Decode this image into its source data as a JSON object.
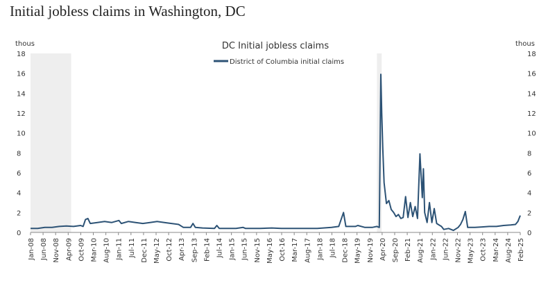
{
  "page_title": "Initial jobless claims in Washington, DC",
  "chart_data": {
    "type": "line",
    "title": "DC Initial jobless claims",
    "y_unit_left": "thous",
    "y_unit_right": "thous",
    "ylim": [
      0,
      18
    ],
    "y_ticks": [
      0,
      2,
      4,
      6,
      8,
      10,
      12,
      14,
      16,
      18
    ],
    "x_range": [
      "Jan-08",
      "Feb-25"
    ],
    "x_tick_labels": [
      "Jan-08",
      "Jun-08",
      "Nov-08",
      "Apr-09",
      "Oct-09",
      "Mar-10",
      "Aug-10",
      "Jan-11",
      "Jul-11",
      "Dec-11",
      "May-12",
      "Oct-12",
      "Apr-13",
      "Sep-13",
      "Feb-14",
      "Jul-14",
      "Jan-15",
      "Jun-15",
      "Nov-15",
      "May-16",
      "Oct-16",
      "Mar-17",
      "Aug-17",
      "Jan-18",
      "Jul-18",
      "Dec-18",
      "May-19",
      "Nov-19",
      "Apr-20",
      "Sep-20",
      "Feb-21",
      "Aug-21",
      "Jan-22",
      "Jun-22",
      "Nov-22",
      "May-23",
      "Oct-23",
      "Mar-24",
      "Aug-24",
      "Feb-25"
    ],
    "legend": "top-center",
    "grid": false,
    "recession_shading": [
      [
        "2008-01",
        "2009-06"
      ],
      [
        "2020-02",
        "2020-04"
      ]
    ],
    "series": [
      {
        "name": "District of Columbia initial claims",
        "color": "#2c5275",
        "points": [
          [
            "2008-01",
            0.4
          ],
          [
            "2008-04",
            0.4
          ],
          [
            "2008-07",
            0.5
          ],
          [
            "2008-10",
            0.5
          ],
          [
            "2009-01",
            0.6
          ],
          [
            "2009-04",
            0.65
          ],
          [
            "2009-07",
            0.6
          ],
          [
            "2009-10",
            0.7
          ],
          [
            "2009-11",
            0.6
          ],
          [
            "2009-12",
            1.3
          ],
          [
            "2010-01",
            1.4
          ],
          [
            "2010-02",
            0.9
          ],
          [
            "2010-05",
            1.0
          ],
          [
            "2010-08",
            1.1
          ],
          [
            "2010-11",
            1.0
          ],
          [
            "2011-02",
            1.2
          ],
          [
            "2011-03",
            0.9
          ],
          [
            "2011-06",
            1.1
          ],
          [
            "2011-09",
            1.0
          ],
          [
            "2011-12",
            0.9
          ],
          [
            "2012-03",
            1.0
          ],
          [
            "2012-06",
            1.1
          ],
          [
            "2012-09",
            1.0
          ],
          [
            "2012-12",
            0.9
          ],
          [
            "2013-03",
            0.8
          ],
          [
            "2013-05",
            0.5
          ],
          [
            "2013-08",
            0.5
          ],
          [
            "2013-09",
            0.9
          ],
          [
            "2013-10",
            0.5
          ],
          [
            "2014-01",
            0.45
          ],
          [
            "2014-06",
            0.4
          ],
          [
            "2014-07",
            0.7
          ],
          [
            "2014-08",
            0.4
          ],
          [
            "2015-03",
            0.4
          ],
          [
            "2015-06",
            0.5
          ],
          [
            "2015-07",
            0.4
          ],
          [
            "2016-01",
            0.4
          ],
          [
            "2016-06",
            0.45
          ],
          [
            "2016-10",
            0.4
          ],
          [
            "2017-03",
            0.4
          ],
          [
            "2017-08",
            0.4
          ],
          [
            "2018-01",
            0.4
          ],
          [
            "2018-07",
            0.5
          ],
          [
            "2018-10",
            0.6
          ],
          [
            "2018-12",
            2.0
          ],
          [
            "2019-01",
            0.6
          ],
          [
            "2019-05",
            0.6
          ],
          [
            "2019-06",
            0.7
          ],
          [
            "2019-09",
            0.5
          ],
          [
            "2019-12",
            0.5
          ],
          [
            "2020-02",
            0.6
          ],
          [
            "2020-03",
            0.5
          ],
          [
            "2020-03-20",
            15.9
          ],
          [
            "2020-04",
            12.0
          ],
          [
            "2020-04-15",
            8.5
          ],
          [
            "2020-05",
            5.0
          ],
          [
            "2020-06",
            2.9
          ],
          [
            "2020-07",
            3.2
          ],
          [
            "2020-08",
            2.3
          ],
          [
            "2020-09",
            2.0
          ],
          [
            "2020-10",
            1.6
          ],
          [
            "2020-11",
            1.8
          ],
          [
            "2020-12",
            1.4
          ],
          [
            "2021-01",
            1.5
          ],
          [
            "2021-02",
            3.6
          ],
          [
            "2021-03",
            1.5
          ],
          [
            "2021-04",
            3.0
          ],
          [
            "2021-05",
            1.6
          ],
          [
            "2021-06",
            2.6
          ],
          [
            "2021-07",
            1.4
          ],
          [
            "2021-08",
            7.9
          ],
          [
            "2021-09",
            3.5
          ],
          [
            "2021-09-15",
            6.4
          ],
          [
            "2021-10",
            2.0
          ],
          [
            "2021-11",
            1.0
          ],
          [
            "2021-12",
            3.0
          ],
          [
            "2022-01",
            1.0
          ],
          [
            "2022-02",
            2.4
          ],
          [
            "2022-03",
            0.9
          ],
          [
            "2022-05",
            0.6
          ],
          [
            "2022-06",
            0.3
          ],
          [
            "2022-08",
            0.4
          ],
          [
            "2022-10",
            0.2
          ],
          [
            "2022-12",
            0.5
          ],
          [
            "2023-01",
            0.8
          ],
          [
            "2023-02",
            1.3
          ],
          [
            "2023-03",
            2.1
          ],
          [
            "2023-04",
            0.5
          ],
          [
            "2023-07",
            0.5
          ],
          [
            "2023-10",
            0.55
          ],
          [
            "2024-01",
            0.6
          ],
          [
            "2024-04",
            0.6
          ],
          [
            "2024-07",
            0.7
          ],
          [
            "2024-10",
            0.75
          ],
          [
            "2024-12",
            0.8
          ],
          [
            "2025-01",
            1.1
          ],
          [
            "2025-02",
            1.7
          ]
        ]
      }
    ]
  }
}
